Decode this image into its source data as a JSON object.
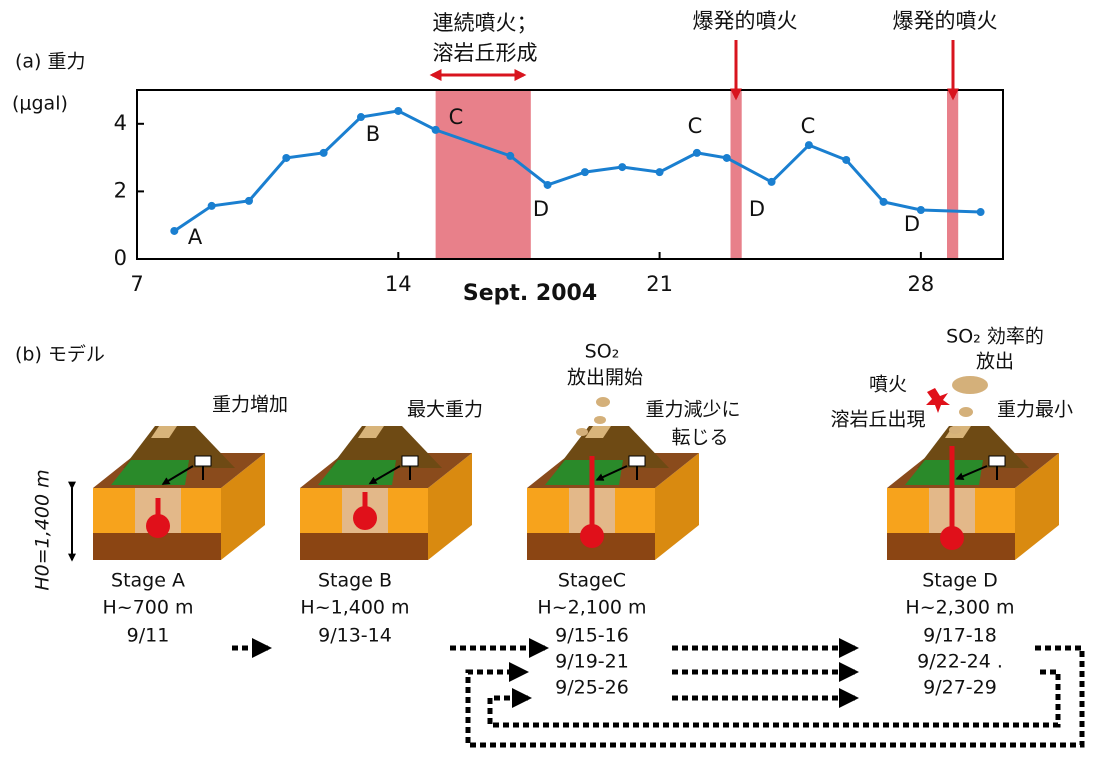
{
  "chart_data": {
    "type": "line",
    "title": "(a) 重力",
    "y_label": "(μgal)",
    "x_label": "Sept. 2004",
    "x": [
      8,
      9,
      10,
      11,
      12,
      13,
      14,
      15,
      17,
      18,
      19,
      20,
      21,
      22,
      22.8,
      24,
      25,
      26,
      27,
      28,
      29.6
    ],
    "series": [
      {
        "color": "#1a7fd0",
        "values": [
          0.83,
          1.57,
          1.72,
          2.99,
          3.14,
          4.2,
          4.38,
          3.82,
          3.05,
          2.19,
          2.57,
          2.72,
          2.57,
          3.14,
          2.99,
          2.28,
          3.37,
          2.93,
          1.69,
          1.45,
          1.39
        ]
      }
    ],
    "xlim": [
      7,
      30.2
    ],
    "xticks": [
      7,
      14,
      21,
      28
    ],
    "ylim": [
      0,
      5
    ],
    "yticks": [
      0,
      2,
      4
    ],
    "eruption_spans": [
      [
        15,
        17.55
      ],
      [
        22.9,
        23.2
      ],
      [
        28.7,
        29
      ]
    ],
    "span_color": "#e8808a",
    "point_labels": [
      "A",
      "B",
      "C",
      "D",
      "C",
      "D",
      "C",
      "D"
    ],
    "annotations": [
      {
        "lines": [
          "連続噴火；",
          "溶岩丘形成"
        ]
      },
      {
        "lines": [
          "爆発的噴火"
        ]
      },
      {
        "lines": [
          "爆発的噴火"
        ]
      }
    ]
  },
  "model": {
    "title": "(b) モデル",
    "depth_label": "H0=1,400 m",
    "stages": [
      {
        "name": "Stage A",
        "depth": "H~700 m",
        "dates": [
          "9/11"
        ],
        "notes": [
          "重力増加"
        ]
      },
      {
        "name": "Stage B",
        "depth": "H~1,400 m",
        "dates": [
          "9/13-14"
        ],
        "notes": [
          "最大重力"
        ]
      },
      {
        "name": "StageC",
        "depth": "H~2,100 m",
        "dates": [
          "9/15-16",
          "9/19-21",
          "9/25-26"
        ],
        "notes": [
          "SO₂",
          "放出開始",
          "重力減少に",
          "転じる"
        ]
      },
      {
        "name": "Stage D",
        "depth": "H~2,300 m",
        "dates": [
          "9/17-18",
          "9/22-24 .",
          "9/27-29"
        ],
        "notes": [
          "SO₂ 効率的",
          "放出",
          "噴火",
          "溶岩丘出現",
          "重力最小"
        ]
      }
    ]
  }
}
